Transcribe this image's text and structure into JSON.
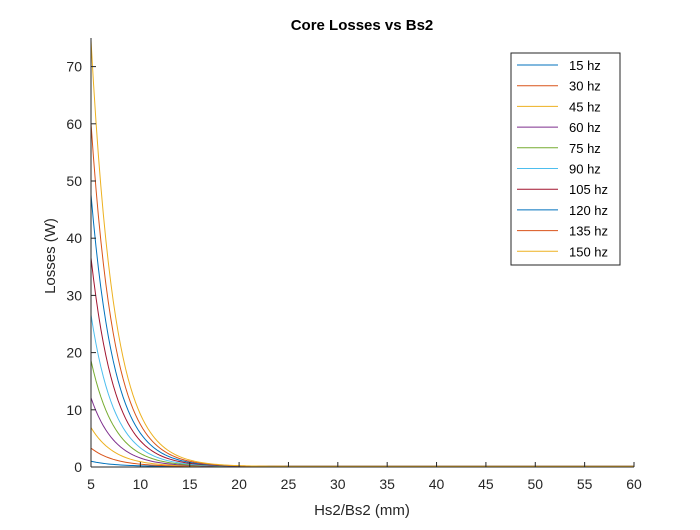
{
  "chart_data": {
    "type": "line",
    "title": "Core Losses vs Bs2",
    "xlabel": "Hs2/Bs2 (mm)",
    "ylabel": "Losses (W)",
    "xlim": [
      5,
      60
    ],
    "ylim": [
      0,
      75
    ],
    "xticks": [
      5,
      10,
      15,
      20,
      25,
      30,
      35,
      40,
      45,
      50,
      55,
      60
    ],
    "yticks": [
      0,
      10,
      20,
      30,
      40,
      50,
      60,
      70
    ],
    "grid": false,
    "legend_position": "top-right",
    "curve_form": "y = v0 * exp(-k * (x - 5)) + 0.1",
    "x": [
      5,
      10,
      15,
      20,
      25,
      30,
      35,
      40,
      45,
      50,
      55,
      60
    ],
    "series": [
      {
        "name": "15 hz",
        "color": "#0072BD",
        "v0": 0.9,
        "k": 0.42
      },
      {
        "name": "30 hz",
        "color": "#D95319",
        "v0": 3.2,
        "k": 0.42
      },
      {
        "name": "45 hz",
        "color": "#EDB120",
        "v0": 6.8,
        "k": 0.42
      },
      {
        "name": "60 hz",
        "color": "#7E2F8E",
        "v0": 12.0,
        "k": 0.42
      },
      {
        "name": "75 hz",
        "color": "#77AC30",
        "v0": 18.5,
        "k": 0.42
      },
      {
        "name": "90 hz",
        "color": "#4DBEEE",
        "v0": 26.5,
        "k": 0.42
      },
      {
        "name": "105 hz",
        "color": "#A2142F",
        "v0": 36.5,
        "k": 0.42
      },
      {
        "name": "120 hz",
        "color": "#0072BD",
        "v0": 47.5,
        "k": 0.42
      },
      {
        "name": "135 hz",
        "color": "#D95319",
        "v0": 60.0,
        "k": 0.42
      },
      {
        "name": "150 hz",
        "color": "#EDB120",
        "v0": 74.5,
        "k": 0.42
      }
    ]
  }
}
